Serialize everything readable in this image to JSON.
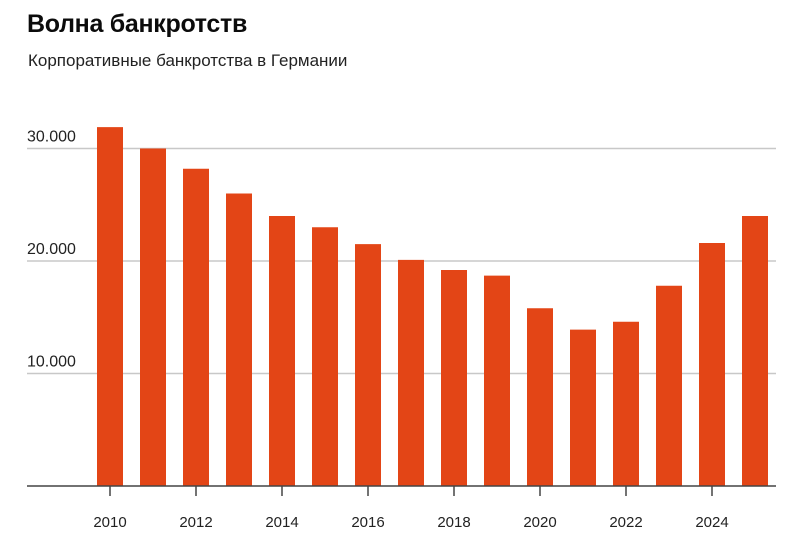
{
  "header": {
    "title": "Волна банкротств",
    "subtitle": "Корпоративные банкротства в Германии"
  },
  "colors": {
    "bar": "#e34516",
    "grid": "#c8c8c8",
    "axis": "#444444"
  },
  "chart_data": {
    "type": "bar",
    "title": "Волна банкротств",
    "subtitle": "Корпоративные банкротства в Германии",
    "xlabel": "",
    "ylabel": "",
    "categories": [
      "2010",
      "2011",
      "2012",
      "2013",
      "2014",
      "2015",
      "2016",
      "2017",
      "2018",
      "2019",
      "2020",
      "2021",
      "2022",
      "2023",
      "2024",
      "2025"
    ],
    "values": [
      31900,
      30000,
      28200,
      26000,
      24000,
      23000,
      21500,
      20100,
      19200,
      18700,
      15800,
      13900,
      14600,
      17800,
      21600,
      24000
    ],
    "x_tick_labels": [
      "2010",
      "2012",
      "2014",
      "2016",
      "2018",
      "2020",
      "2022",
      "2024"
    ],
    "y_tick_labels": [
      "10.000",
      "20.000",
      "30.000"
    ],
    "y_ticks": [
      10000,
      20000,
      30000
    ],
    "ylim": [
      0,
      32000
    ],
    "grid": true,
    "legend": null
  }
}
